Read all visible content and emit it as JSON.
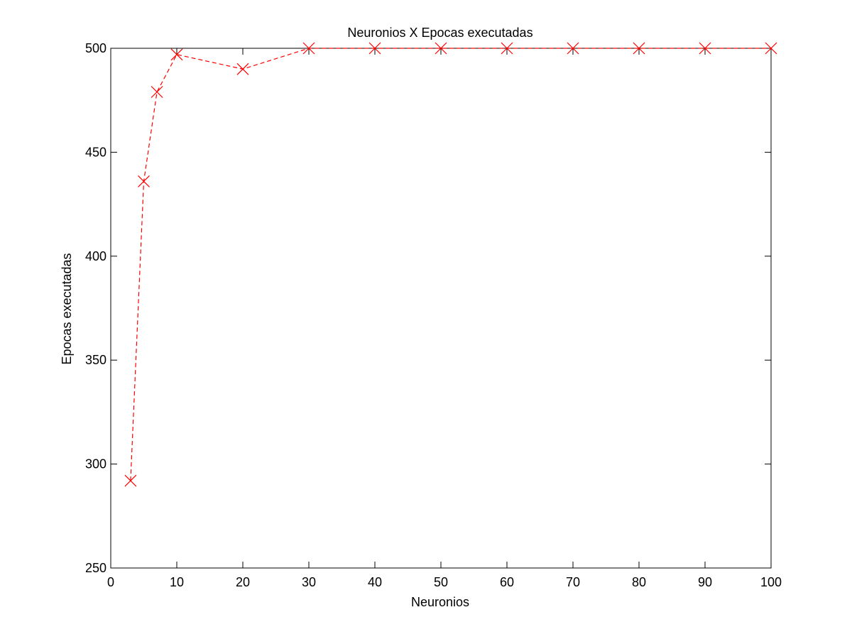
{
  "chart_data": {
    "type": "line",
    "title": "Neuronios X Epocas executadas",
    "xlabel": "Neuronios",
    "ylabel": "Epocas executadas",
    "xlim": [
      0,
      100
    ],
    "ylim": [
      250,
      500
    ],
    "xticks": [
      0,
      10,
      20,
      30,
      40,
      50,
      60,
      70,
      80,
      90,
      100
    ],
    "yticks": [
      250,
      300,
      350,
      400,
      450,
      500
    ],
    "xtick_labels": [
      "0",
      "10",
      "20",
      "30",
      "40",
      "50",
      "60",
      "70",
      "80",
      "90",
      "100"
    ],
    "ytick_labels": [
      "250",
      "300",
      "350",
      "400",
      "450",
      "500"
    ],
    "grid": false,
    "series": [
      {
        "x": [
          3,
          5,
          7,
          10,
          20,
          30,
          40,
          50,
          60,
          70,
          80,
          90,
          100
        ],
        "y": [
          292,
          436,
          479,
          497,
          490,
          500,
          500,
          500,
          500,
          500,
          500,
          500,
          500
        ],
        "color": "#ff0000",
        "marker": "x",
        "line_style": "dashed"
      }
    ]
  }
}
